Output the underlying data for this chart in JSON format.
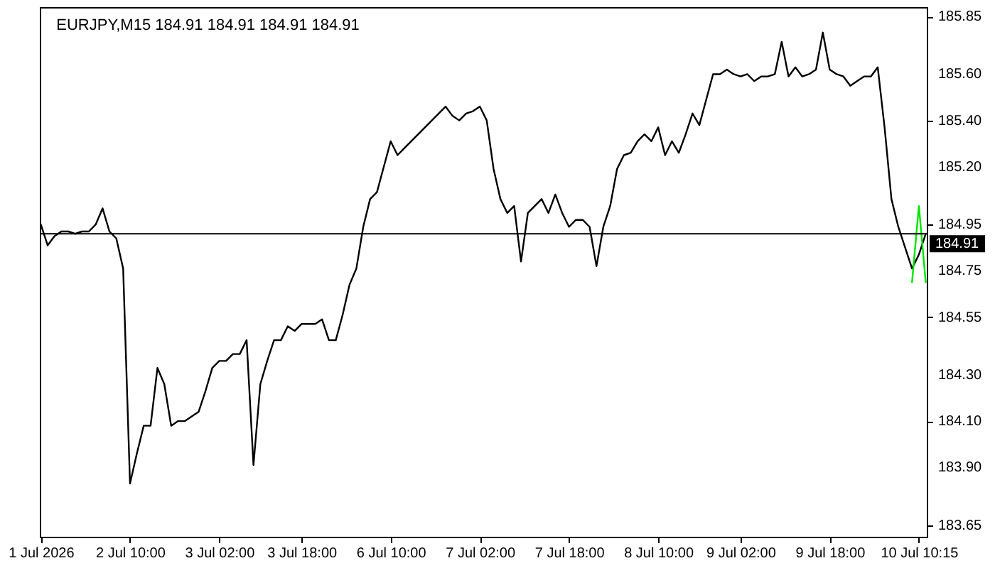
{
  "chart_data": {
    "type": "line",
    "title": "EURJPY,M15  184.91 184.91 184.91 184.91",
    "categories": [
      "1 Jul 2026",
      null,
      null,
      null,
      null,
      null,
      null,
      null,
      null,
      null,
      null,
      null,
      null,
      "2 Jul 10:00",
      null,
      null,
      null,
      null,
      null,
      null,
      null,
      null,
      null,
      null,
      null,
      null,
      "3 Jul 02:00",
      null,
      null,
      null,
      null,
      null,
      null,
      null,
      null,
      null,
      null,
      null,
      "3 Jul 18:00",
      null,
      null,
      null,
      null,
      null,
      null,
      null,
      null,
      null,
      null,
      null,
      null,
      "6 Jul 10:00",
      null,
      null,
      null,
      null,
      null,
      null,
      null,
      null,
      null,
      null,
      null,
      null,
      "7 Jul 02:00",
      null,
      null,
      null,
      null,
      null,
      null,
      null,
      null,
      null,
      null,
      null,
      null,
      "7 Jul 18:00",
      null,
      null,
      null,
      null,
      null,
      null,
      null,
      null,
      null,
      null,
      null,
      null,
      "8 Jul 10:00",
      null,
      null,
      null,
      null,
      null,
      null,
      null,
      null,
      null,
      null,
      null,
      "9 Jul 02:00",
      null,
      null,
      null,
      null,
      null,
      null,
      null,
      null,
      null,
      null,
      null,
      null,
      "9 Jul 18:00",
      null,
      null,
      null,
      null,
      null,
      null,
      null,
      null,
      null,
      null,
      null,
      null,
      "10 Jul 10:15",
      null
    ],
    "ylim": [
      183.6,
      185.89
    ],
    "yticks": [
      {
        "value": 183.65,
        "label": "183.65"
      },
      {
        "value": 183.9,
        "label": "183.90"
      },
      {
        "value": 184.1,
        "label": "184.10"
      },
      {
        "value": 184.3,
        "label": "184.30"
      },
      {
        "value": 184.55,
        "label": "184.55"
      },
      {
        "value": 184.75,
        "label": "184.75"
      },
      {
        "value": 184.95,
        "label": "184.95"
      },
      {
        "value": 185.2,
        "label": "185.20"
      },
      {
        "value": 185.4,
        "label": "185.40"
      },
      {
        "value": 185.6,
        "label": "185.60"
      },
      {
        "value": 185.85,
        "label": "185.85"
      }
    ],
    "series": [
      {
        "color": "#000000",
        "values": [
          184.95,
          184.86,
          184.9,
          184.92,
          184.92,
          184.91,
          184.92,
          184.92,
          184.95,
          185.02,
          184.92,
          184.89,
          184.76,
          183.83,
          183.96,
          184.08,
          184.08,
          184.33,
          184.26,
          184.08,
          184.1,
          184.1,
          184.12,
          184.14,
          184.23,
          184.33,
          184.36,
          184.36,
          184.39,
          184.39,
          184.45,
          183.91,
          184.26,
          184.36,
          184.45,
          184.45,
          184.51,
          184.49,
          184.52,
          184.52,
          184.52,
          184.54,
          184.45,
          184.45,
          184.56,
          184.69,
          184.76,
          184.94,
          185.06,
          185.09,
          185.2,
          185.31,
          185.25,
          185.28,
          185.31,
          185.34,
          185.37,
          185.4,
          185.43,
          185.46,
          185.42,
          185.4,
          185.43,
          185.44,
          185.46,
          185.4,
          185.19,
          185.06,
          185.0,
          185.03,
          184.79,
          185.0,
          185.03,
          185.06,
          185.0,
          185.08,
          185.0,
          184.94,
          184.97,
          184.97,
          184.94,
          184.77,
          184.94,
          185.03,
          185.19,
          185.25,
          185.26,
          185.31,
          185.34,
          185.31,
          185.37,
          185.25,
          185.31,
          185.26,
          185.34,
          185.43,
          185.38,
          185.49,
          185.6,
          185.6,
          185.62,
          185.6,
          185.59,
          185.6,
          185.57,
          185.59,
          185.59,
          185.6,
          185.74,
          185.59,
          185.63,
          185.59,
          185.6,
          185.62,
          185.78,
          185.62,
          185.6,
          185.59,
          185.55,
          185.57,
          185.59,
          185.59,
          185.63,
          185.37,
          185.06,
          184.94,
          184.85,
          184.76,
          184.82,
          184.91
        ]
      },
      {
        "color": "#00e600",
        "values": [
          null,
          null,
          null,
          null,
          null,
          null,
          null,
          null,
          null,
          null,
          null,
          null,
          null,
          null,
          null,
          null,
          null,
          null,
          null,
          null,
          null,
          null,
          null,
          null,
          null,
          null,
          null,
          null,
          null,
          null,
          null,
          null,
          null,
          null,
          null,
          null,
          null,
          null,
          null,
          null,
          null,
          null,
          null,
          null,
          null,
          null,
          null,
          null,
          null,
          null,
          null,
          null,
          null,
          null,
          null,
          null,
          null,
          null,
          null,
          null,
          null,
          null,
          null,
          null,
          null,
          null,
          null,
          null,
          null,
          null,
          null,
          null,
          null,
          null,
          null,
          null,
          null,
          null,
          null,
          null,
          null,
          null,
          null,
          null,
          null,
          null,
          null,
          null,
          null,
          null,
          null,
          null,
          null,
          null,
          null,
          null,
          null,
          null,
          null,
          null,
          null,
          null,
          null,
          null,
          null,
          null,
          null,
          null,
          null,
          null,
          null,
          null,
          null,
          null,
          null,
          null,
          null,
          null,
          null,
          null,
          null,
          null,
          null,
          null,
          null,
          null,
          null,
          184.7,
          185.03,
          184.7
        ]
      }
    ],
    "ref_lines": [
      {
        "axis": "y",
        "value": 184.91,
        "label": "184.91",
        "color": "#000000"
      }
    ]
  }
}
